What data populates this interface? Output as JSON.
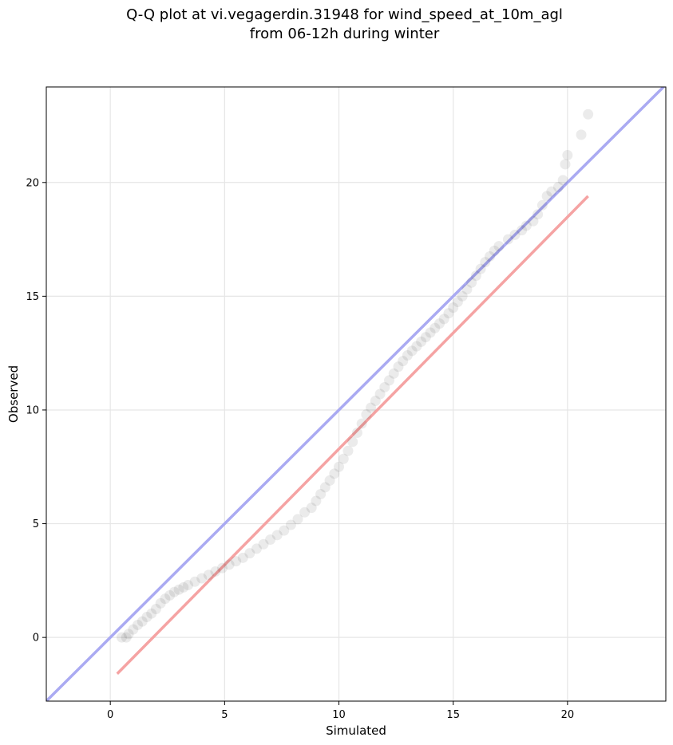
{
  "chart_data": {
    "type": "scatter",
    "title": "Q-Q plot at vi.vegagerdin.31948 for wind_speed_at_10m_agl",
    "subtitle": "from 06-12h during winter",
    "xlabel": "Simulated",
    "ylabel": "Observed",
    "xlim": [
      -2.8,
      24.3
    ],
    "ylim": [
      -2.8,
      24.2
    ],
    "xticks": [
      0,
      5,
      10,
      15,
      20
    ],
    "yticks": [
      0,
      5,
      10,
      15,
      20
    ],
    "grid": true,
    "colors": {
      "points": "#000000",
      "identity_line": "#aaaaf2",
      "fit_line": "#f5a3a3",
      "grid": "#e6e6e6"
    },
    "reference_lines": [
      {
        "kind": "identity",
        "points": [
          [
            -2.8,
            -2.8
          ],
          [
            24.3,
            24.3
          ]
        ]
      },
      {
        "kind": "fit",
        "points": [
          [
            0.3,
            -1.6
          ],
          [
            20.9,
            19.4
          ]
        ]
      }
    ],
    "series": [
      {
        "points": [
          [
            0.5,
            0.0
          ],
          [
            0.7,
            0.0
          ],
          [
            0.8,
            0.15
          ],
          [
            1.0,
            0.35
          ],
          [
            1.2,
            0.55
          ],
          [
            1.4,
            0.7
          ],
          [
            1.6,
            0.9
          ],
          [
            1.8,
            1.05
          ],
          [
            2.0,
            1.25
          ],
          [
            2.2,
            1.5
          ],
          [
            2.4,
            1.7
          ],
          [
            2.6,
            1.85
          ],
          [
            2.8,
            2.0
          ],
          [
            3.0,
            2.1
          ],
          [
            3.2,
            2.2
          ],
          [
            3.4,
            2.3
          ],
          [
            3.7,
            2.45
          ],
          [
            4.0,
            2.6
          ],
          [
            4.3,
            2.75
          ],
          [
            4.6,
            2.9
          ],
          [
            4.9,
            3.05
          ],
          [
            5.2,
            3.2
          ],
          [
            5.5,
            3.35
          ],
          [
            5.8,
            3.5
          ],
          [
            6.1,
            3.7
          ],
          [
            6.4,
            3.9
          ],
          [
            6.7,
            4.1
          ],
          [
            7.0,
            4.3
          ],
          [
            7.3,
            4.5
          ],
          [
            7.6,
            4.7
          ],
          [
            7.9,
            4.95
          ],
          [
            8.2,
            5.2
          ],
          [
            8.5,
            5.5
          ],
          [
            8.8,
            5.7
          ],
          [
            9.0,
            6.0
          ],
          [
            9.2,
            6.3
          ],
          [
            9.4,
            6.6
          ],
          [
            9.6,
            6.9
          ],
          [
            9.8,
            7.2
          ],
          [
            10.0,
            7.5
          ],
          [
            10.2,
            7.85
          ],
          [
            10.4,
            8.2
          ],
          [
            10.6,
            8.6
          ],
          [
            10.8,
            9.0
          ],
          [
            11.0,
            9.4
          ],
          [
            11.2,
            9.8
          ],
          [
            11.4,
            10.1
          ],
          [
            11.6,
            10.4
          ],
          [
            11.8,
            10.7
          ],
          [
            12.0,
            11.0
          ],
          [
            12.2,
            11.3
          ],
          [
            12.4,
            11.6
          ],
          [
            12.6,
            11.9
          ],
          [
            12.8,
            12.15
          ],
          [
            13.0,
            12.4
          ],
          [
            13.2,
            12.6
          ],
          [
            13.4,
            12.8
          ],
          [
            13.6,
            13.0
          ],
          [
            13.8,
            13.2
          ],
          [
            14.0,
            13.4
          ],
          [
            14.2,
            13.6
          ],
          [
            14.4,
            13.8
          ],
          [
            14.6,
            14.0
          ],
          [
            14.8,
            14.25
          ],
          [
            15.0,
            14.5
          ],
          [
            15.2,
            14.75
          ],
          [
            15.4,
            15.0
          ],
          [
            15.6,
            15.3
          ],
          [
            15.8,
            15.6
          ],
          [
            16.0,
            15.9
          ],
          [
            16.2,
            16.2
          ],
          [
            16.4,
            16.5
          ],
          [
            16.6,
            16.75
          ],
          [
            16.8,
            17.0
          ],
          [
            17.0,
            17.2
          ],
          [
            17.4,
            17.5
          ],
          [
            17.7,
            17.7
          ],
          [
            18.0,
            17.9
          ],
          [
            18.2,
            18.1
          ],
          [
            18.5,
            18.3
          ],
          [
            18.7,
            18.6
          ],
          [
            18.9,
            19.0
          ],
          [
            19.1,
            19.4
          ],
          [
            19.3,
            19.6
          ],
          [
            19.6,
            19.8
          ],
          [
            19.8,
            20.1
          ],
          [
            19.9,
            20.8
          ],
          [
            20.0,
            21.2
          ],
          [
            20.6,
            22.1
          ],
          [
            20.9,
            23.0
          ]
        ]
      }
    ]
  }
}
